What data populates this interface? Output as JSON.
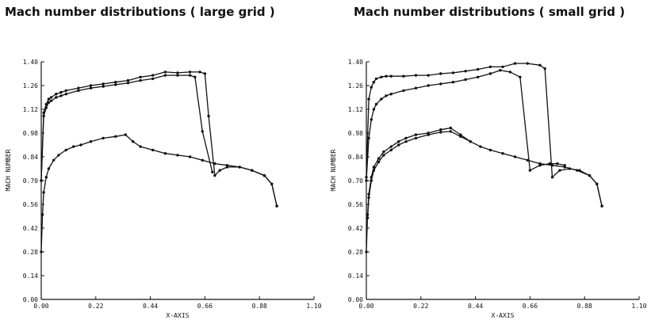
{
  "chart_data": [
    {
      "type": "line",
      "title": "Mach number distributions ( large grid )",
      "xlabel": "X-AXIS",
      "ylabel": "MACH NUMBER",
      "xlim": [
        0,
        1.1
      ],
      "ylim": [
        0,
        1.4
      ],
      "xticks": [
        "0.00",
        "0.22",
        "0.44",
        "0.66",
        "0.88",
        "1.10"
      ],
      "yticks": [
        "0.00",
        "0.14",
        "0.28",
        "0.42",
        "0.56",
        "0.70",
        "0.84",
        "0.98",
        "1.12",
        "1.26",
        "1.40"
      ],
      "series": [
        {
          "x": [
            0,
            0.01,
            0.02,
            0.03,
            0.04,
            0.06,
            0.08,
            0.1,
            0.15,
            0.2,
            0.25,
            0.3,
            0.35,
            0.4,
            0.45,
            0.5,
            0.55,
            0.6,
            0.64,
            0.66,
            0.675,
            0.7,
            0.72,
            0.75,
            0.8,
            0.85,
            0.9,
            0.93,
            0.95
          ],
          "y": [
            0.7,
            1.1,
            1.15,
            1.18,
            1.19,
            1.21,
            1.22,
            1.23,
            1.245,
            1.26,
            1.27,
            1.28,
            1.29,
            1.31,
            1.32,
            1.34,
            1.335,
            1.34,
            1.34,
            1.33,
            1.08,
            0.73,
            0.76,
            0.78,
            0.78,
            0.76,
            0.73,
            0.68,
            0.55
          ]
        },
        {
          "x": [
            0,
            0.01,
            0.02,
            0.03,
            0.04,
            0.06,
            0.08,
            0.1,
            0.15,
            0.2,
            0.25,
            0.3,
            0.35,
            0.4,
            0.45,
            0.5,
            0.55,
            0.6,
            0.62,
            0.65,
            0.69
          ],
          "y": [
            0.7,
            1.08,
            1.13,
            1.16,
            1.17,
            1.19,
            1.2,
            1.21,
            1.23,
            1.245,
            1.255,
            1.265,
            1.275,
            1.29,
            1.3,
            1.32,
            1.32,
            1.32,
            1.31,
            0.99,
            0.75
          ]
        },
        {
          "x": [
            0,
            0.005,
            0.01,
            0.02,
            0.03,
            0.05,
            0.07,
            0.1,
            0.13,
            0.16,
            0.2,
            0.25,
            0.3,
            0.34,
            0.37,
            0.4,
            0.45,
            0.5,
            0.55,
            0.6,
            0.65,
            0.7,
            0.75,
            0.8,
            0.85,
            0.9,
            0.93,
            0.95
          ],
          "y": [
            0.28,
            0.5,
            0.63,
            0.72,
            0.77,
            0.82,
            0.85,
            0.88,
            0.9,
            0.91,
            0.93,
            0.95,
            0.96,
            0.97,
            0.93,
            0.9,
            0.88,
            0.86,
            0.85,
            0.84,
            0.82,
            0.8,
            0.79,
            0.78,
            0.76,
            0.73,
            0.68,
            0.55
          ]
        }
      ]
    },
    {
      "type": "line",
      "title": "Mach number distributions ( small grid )",
      "xlabel": "X-AXIS",
      "ylabel": "MACH NUMBER",
      "xlim": [
        0,
        1.1
      ],
      "ylim": [
        0,
        1.4
      ],
      "xticks": [
        "0.00",
        "0.22",
        "0.44",
        "0.66",
        "0.88",
        "1.10"
      ],
      "yticks": [
        "0.00",
        "0.14",
        "0.28",
        "0.42",
        "0.56",
        "0.70",
        "0.84",
        "0.98",
        "1.12",
        "1.26",
        "1.40"
      ],
      "series": [
        {
          "x": [
            0,
            0.01,
            0.02,
            0.03,
            0.04,
            0.06,
            0.08,
            0.1,
            0.15,
            0.2,
            0.25,
            0.3,
            0.35,
            0.4,
            0.45,
            0.5,
            0.55,
            0.6,
            0.65,
            0.7,
            0.72,
            0.75,
            0.78,
            0.82,
            0.86,
            0.9,
            0.93,
            0.95
          ],
          "y": [
            0.72,
            1.18,
            1.25,
            1.28,
            1.3,
            1.31,
            1.315,
            1.315,
            1.315,
            1.32,
            1.32,
            1.33,
            1.335,
            1.345,
            1.355,
            1.37,
            1.37,
            1.39,
            1.39,
            1.38,
            1.36,
            0.72,
            0.76,
            0.77,
            0.76,
            0.73,
            0.68,
            0.55
          ]
        },
        {
          "x": [
            0,
            0.01,
            0.02,
            0.03,
            0.04,
            0.06,
            0.08,
            0.1,
            0.15,
            0.2,
            0.25,
            0.3,
            0.35,
            0.4,
            0.45,
            0.5,
            0.54,
            0.58,
            0.62,
            0.66,
            0.7,
            0.74,
            0.77,
            0.8
          ],
          "y": [
            0.7,
            0.95,
            1.06,
            1.12,
            1.15,
            1.18,
            1.2,
            1.21,
            1.23,
            1.245,
            1.26,
            1.27,
            1.28,
            1.295,
            1.31,
            1.33,
            1.35,
            1.34,
            1.31,
            0.76,
            0.79,
            0.8,
            0.8,
            0.79
          ]
        },
        {
          "x": [
            0,
            0.005,
            0.01,
            0.02,
            0.03,
            0.05,
            0.07,
            0.1,
            0.13,
            0.16,
            0.2,
            0.25,
            0.3,
            0.34,
            0.38,
            0.42,
            0.46,
            0.5,
            0.55,
            0.6,
            0.65,
            0.7,
            0.75,
            0.8,
            0.85,
            0.9,
            0.93,
            0.95
          ],
          "y": [
            0.28,
            0.5,
            0.62,
            0.72,
            0.78,
            0.83,
            0.87,
            0.9,
            0.93,
            0.95,
            0.97,
            0.98,
            1.0,
            1.01,
            0.97,
            0.93,
            0.9,
            0.88,
            0.86,
            0.84,
            0.82,
            0.8,
            0.79,
            0.78,
            0.76,
            0.73,
            0.68,
            0.55
          ]
        },
        {
          "x": [
            0.005,
            0.01,
            0.02,
            0.03,
            0.05,
            0.07,
            0.1,
            0.13,
            0.16,
            0.2,
            0.25,
            0.3,
            0.34,
            0.38,
            0.42
          ],
          "y": [
            0.48,
            0.6,
            0.7,
            0.76,
            0.81,
            0.85,
            0.88,
            0.91,
            0.93,
            0.95,
            0.97,
            0.985,
            0.99,
            0.96,
            0.93
          ]
        }
      ]
    }
  ]
}
